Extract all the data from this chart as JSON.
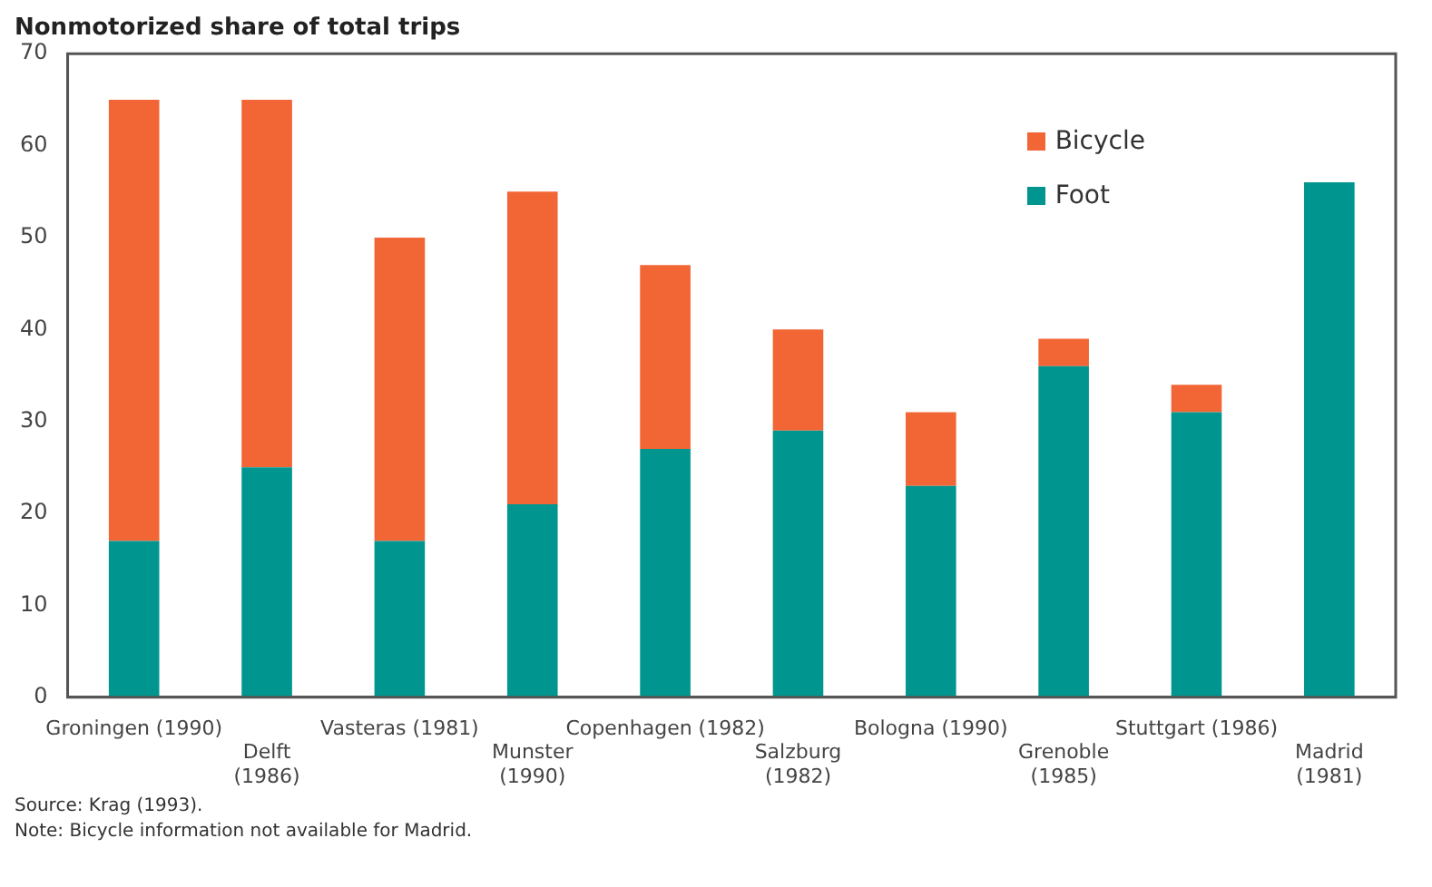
{
  "chart_data": {
    "type": "bar",
    "title": "Nonmotorized share of total trips",
    "categories": [
      "Groningen (1990)",
      "Delft (1986)",
      "Vasteras (1981)",
      "Munster (1990)",
      "Copenhagen (1982)",
      "Salzburg (1982)",
      "Bologna (1990)",
      "Grenoble (1985)",
      "Stuttgart (1986)",
      "Madrid (1981)"
    ],
    "series": [
      {
        "name": "Foot",
        "color": "#00968f",
        "values": [
          17,
          25,
          17,
          21,
          27,
          29,
          23,
          36,
          31,
          56
        ]
      },
      {
        "name": "Bicycle",
        "color": "#f26535",
        "values": [
          48,
          40,
          33,
          34,
          20,
          11,
          8,
          3,
          3,
          null
        ]
      }
    ],
    "stacked": true,
    "ylim": [
      0,
      70
    ],
    "yticks": [
      0,
      10,
      20,
      30,
      40,
      50,
      60,
      70
    ],
    "grid": false,
    "legend": "top right",
    "annotations": [
      "Source: Krag (1993).",
      "Note: Bicycle information not available for Madrid."
    ]
  }
}
